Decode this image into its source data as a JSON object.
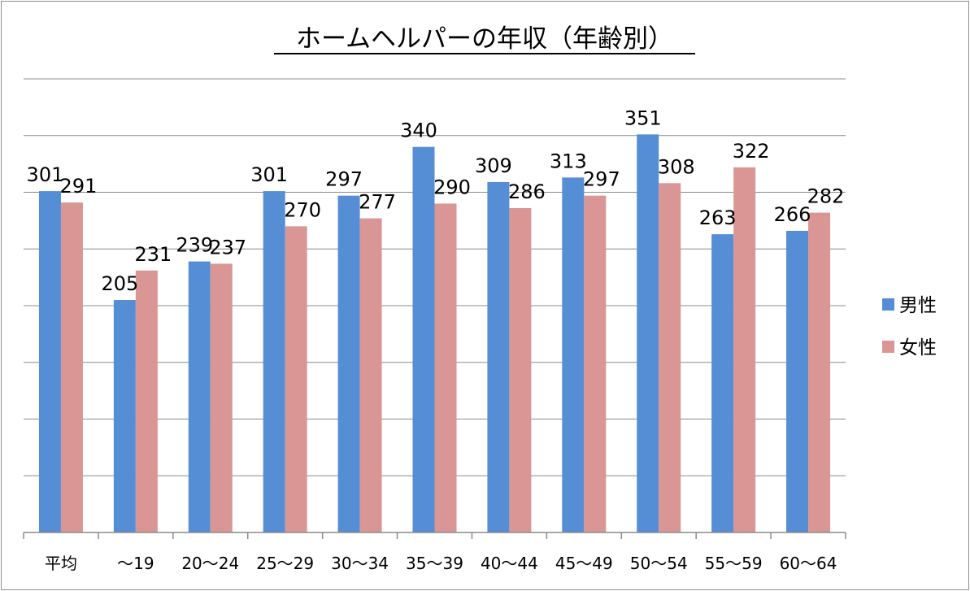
{
  "chart_data": {
    "type": "bar",
    "title": "ホームヘルパーの年収（年齢別）",
    "xlabel": "",
    "ylabel": "",
    "categories": [
      "平均",
      "〜19",
      "20〜24",
      "25〜29",
      "30〜34",
      "35〜39",
      "40〜44",
      "45〜49",
      "50〜54",
      "55〜59",
      "60〜64"
    ],
    "series": [
      {
        "name": "男性",
        "color": "#558ed5",
        "values": [
          301,
          205,
          239,
          301,
          297,
          340,
          309,
          313,
          351,
          263,
          266
        ]
      },
      {
        "name": "女性",
        "color": "#d99694",
        "values": [
          291,
          231,
          237,
          270,
          277,
          290,
          286,
          297,
          308,
          322,
          282
        ]
      }
    ],
    "ylim": [
      0,
      400
    ],
    "grid": true,
    "legend": "right"
  }
}
